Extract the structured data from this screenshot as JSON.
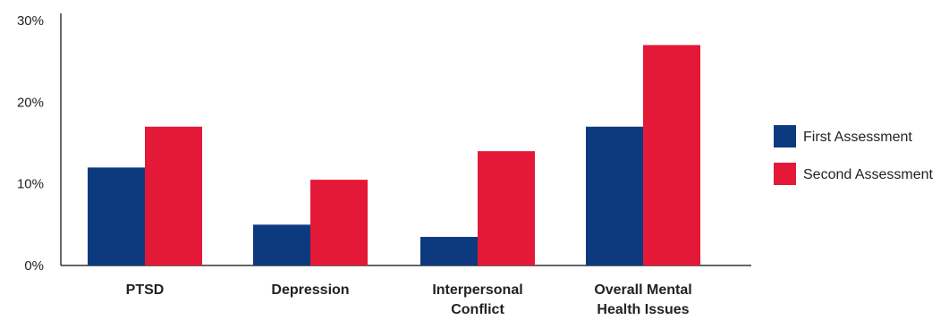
{
  "chart_data": {
    "type": "bar",
    "categories": [
      [
        "PTSD"
      ],
      [
        "Depression"
      ],
      [
        "Interpersonal",
        "Conflict"
      ],
      [
        "Overall Mental",
        "Health Issues"
      ]
    ],
    "series": [
      {
        "name": "First Assessment",
        "color": "#0d3a7e",
        "values": [
          12,
          5,
          3.5,
          17
        ]
      },
      {
        "name": "Second Assessment",
        "color": "#e31937",
        "values": [
          17,
          10.5,
          14,
          27
        ]
      }
    ],
    "yticks": [
      {
        "value": 0,
        "label": "0%"
      },
      {
        "value": 10,
        "label": "10%"
      },
      {
        "value": 20,
        "label": "20%"
      },
      {
        "value": 30,
        "label": "30%"
      }
    ],
    "ylim": [
      0,
      30
    ],
    "grid": false,
    "legend_position": "right"
  }
}
